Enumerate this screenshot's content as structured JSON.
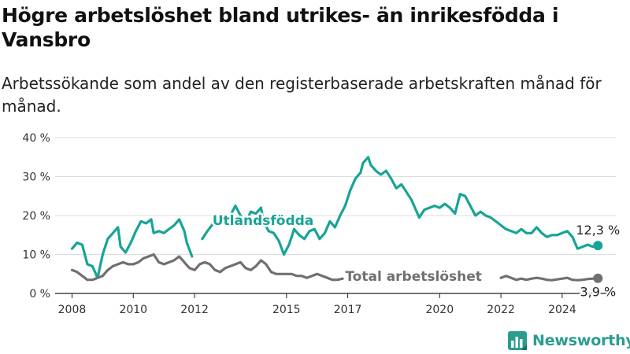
{
  "title": "Högre arbetslöshet bland utrikes- än inrikesfödda i Vansbro",
  "subtitle": "Arbetssökande som andel av den registerbaserade arbetskraften månad för månad.",
  "brand": "Newsworthy",
  "colors": {
    "foreign": "#17a495",
    "total": "#707070",
    "grid": "#dddddd",
    "brand": "#2a9d8f"
  },
  "chart_data": {
    "type": "line",
    "xlabel": "",
    "ylabel": "",
    "ylim": [
      0,
      40
    ],
    "yticks": [
      0,
      10,
      20,
      30,
      40
    ],
    "ytick_labels": [
      "0 %",
      "10 %",
      "20 %",
      "30 %",
      "40 %"
    ],
    "xticks": [
      "2008-01",
      "2010-01",
      "2012-01",
      "2015-01",
      "2017-01",
      "2020-01",
      "2022-01",
      "2024-01"
    ],
    "xtick_labels": [
      "2008",
      "2010",
      "2012",
      "2015",
      "2017",
      "2020",
      "2022",
      "2024"
    ],
    "xlim": [
      "2007-07",
      "2025-10"
    ],
    "grid": "horizontal",
    "series": [
      {
        "name": "Utlandsfödda",
        "end_label": "12,3 %",
        "points": [
          [
            "2008-01",
            11.5
          ],
          [
            "2008-03",
            13.0
          ],
          [
            "2008-05",
            12.5
          ],
          [
            "2008-07",
            7.5
          ],
          [
            "2008-09",
            7.0
          ],
          [
            "2008-11",
            4.0
          ],
          [
            "2009-01",
            10.0
          ],
          [
            "2009-03",
            14.0
          ],
          [
            "2009-05",
            15.5
          ],
          [
            "2009-07",
            17.0
          ],
          [
            "2009-08",
            12.0
          ],
          [
            "2009-10",
            10.5
          ],
          [
            "2009-12",
            13.0
          ],
          [
            "2010-02",
            16.0
          ],
          [
            "2010-04",
            18.5
          ],
          [
            "2010-06",
            18.0
          ],
          [
            "2010-08",
            19.0
          ],
          [
            "2010-09",
            15.5
          ],
          [
            "2010-11",
            16.0
          ],
          [
            "2011-01",
            15.5
          ],
          [
            "2011-03",
            16.5
          ],
          [
            "2011-05",
            17.5
          ],
          [
            "2011-07",
            19.0
          ],
          [
            "2011-09",
            16.0
          ],
          [
            "2011-10",
            13.0
          ],
          [
            "2011-12",
            9.5
          ],
          [
            "2012-04",
            14.0
          ],
          [
            "2012-06",
            16.0
          ],
          [
            "2012-09",
            18.5
          ],
          [
            "2012-12",
            19.0
          ],
          [
            "2013-03",
            20.0
          ],
          [
            "2013-05",
            22.5
          ],
          [
            "2013-07",
            20.0
          ],
          [
            "2013-09",
            18.0
          ],
          [
            "2013-11",
            21.0
          ],
          [
            "2014-01",
            20.5
          ],
          [
            "2014-03",
            22.0
          ],
          [
            "2014-04",
            18.5
          ],
          [
            "2014-06",
            16.0
          ],
          [
            "2014-08",
            15.5
          ],
          [
            "2014-10",
            13.5
          ],
          [
            "2014-12",
            10.0
          ],
          [
            "2015-02",
            12.5
          ],
          [
            "2015-04",
            16.5
          ],
          [
            "2015-06",
            15.0
          ],
          [
            "2015-08",
            14.0
          ],
          [
            "2015-10",
            16.0
          ],
          [
            "2015-12",
            16.5
          ],
          [
            "2016-02",
            14.0
          ],
          [
            "2016-04",
            15.5
          ],
          [
            "2016-06",
            18.5
          ],
          [
            "2016-08",
            17.0
          ],
          [
            "2016-10",
            20.0
          ],
          [
            "2016-12",
            22.5
          ],
          [
            "2017-02",
            26.5
          ],
          [
            "2017-04",
            29.5
          ],
          [
            "2017-06",
            31.0
          ],
          [
            "2017-07",
            33.5
          ],
          [
            "2017-09",
            35.0
          ],
          [
            "2017-10",
            33.0
          ],
          [
            "2017-12",
            31.5
          ],
          [
            "2018-02",
            30.5
          ],
          [
            "2018-04",
            31.5
          ],
          [
            "2018-06",
            29.5
          ],
          [
            "2018-08",
            27.0
          ],
          [
            "2018-10",
            28.0
          ],
          [
            "2018-12",
            26.0
          ],
          [
            "2019-02",
            24.0
          ],
          [
            "2019-04",
            21.0
          ],
          [
            "2019-05",
            19.5
          ],
          [
            "2019-07",
            21.5
          ],
          [
            "2019-09",
            22.0
          ],
          [
            "2019-11",
            22.5
          ],
          [
            "2020-01",
            22.0
          ],
          [
            "2020-03",
            23.0
          ],
          [
            "2020-05",
            22.0
          ],
          [
            "2020-07",
            20.5
          ],
          [
            "2020-09",
            25.5
          ],
          [
            "2020-11",
            25.0
          ],
          [
            "2021-01",
            22.5
          ],
          [
            "2021-03",
            20.0
          ],
          [
            "2021-05",
            21.0
          ],
          [
            "2021-07",
            20.0
          ],
          [
            "2021-09",
            19.5
          ],
          [
            "2021-11",
            18.5
          ],
          [
            "2022-01",
            17.5
          ],
          [
            "2022-03",
            16.5
          ],
          [
            "2022-05",
            16.0
          ],
          [
            "2022-07",
            15.5
          ],
          [
            "2022-09",
            16.5
          ],
          [
            "2022-11",
            15.5
          ],
          [
            "2023-01",
            15.5
          ],
          [
            "2023-03",
            17.0
          ],
          [
            "2023-05",
            15.5
          ],
          [
            "2023-07",
            14.5
          ],
          [
            "2023-09",
            15.0
          ],
          [
            "2023-11",
            15.0
          ],
          [
            "2024-01",
            15.5
          ],
          [
            "2024-03",
            16.0
          ],
          [
            "2024-05",
            14.5
          ],
          [
            "2024-07",
            11.5
          ],
          [
            "2024-09",
            12.0
          ],
          [
            "2024-11",
            12.5
          ],
          [
            "2025-01",
            12.0
          ],
          [
            "2025-03",
            12.3
          ]
        ]
      },
      {
        "name": "Total arbetslöshet",
        "end_label": "3,9 %",
        "points": [
          [
            "2008-01",
            6.0
          ],
          [
            "2008-03",
            5.5
          ],
          [
            "2008-05",
            4.5
          ],
          [
            "2008-07",
            3.5
          ],
          [
            "2008-09",
            3.5
          ],
          [
            "2008-11",
            4.0
          ],
          [
            "2009-01",
            4.5
          ],
          [
            "2009-03",
            6.0
          ],
          [
            "2009-05",
            7.0
          ],
          [
            "2009-07",
            7.5
          ],
          [
            "2009-09",
            8.0
          ],
          [
            "2009-11",
            7.5
          ],
          [
            "2010-01",
            7.5
          ],
          [
            "2010-03",
            8.0
          ],
          [
            "2010-05",
            9.0
          ],
          [
            "2010-07",
            9.5
          ],
          [
            "2010-09",
            10.0
          ],
          [
            "2010-11",
            8.0
          ],
          [
            "2011-01",
            7.5
          ],
          [
            "2011-03",
            8.0
          ],
          [
            "2011-05",
            8.5
          ],
          [
            "2011-07",
            9.5
          ],
          [
            "2011-09",
            8.0
          ],
          [
            "2011-11",
            6.5
          ],
          [
            "2012-01",
            6.0
          ],
          [
            "2012-03",
            7.5
          ],
          [
            "2012-05",
            8.0
          ],
          [
            "2012-07",
            7.5
          ],
          [
            "2012-09",
            6.0
          ],
          [
            "2012-11",
            5.5
          ],
          [
            "2013-01",
            6.5
          ],
          [
            "2013-03",
            7.0
          ],
          [
            "2013-05",
            7.5
          ],
          [
            "2013-07",
            8.0
          ],
          [
            "2013-09",
            6.5
          ],
          [
            "2013-11",
            6.0
          ],
          [
            "2014-01",
            7.0
          ],
          [
            "2014-03",
            8.5
          ],
          [
            "2014-05",
            7.5
          ],
          [
            "2014-07",
            5.5
          ],
          [
            "2014-09",
            5.0
          ],
          [
            "2014-11",
            5.0
          ],
          [
            "2015-01",
            5.0
          ],
          [
            "2015-03",
            5.0
          ],
          [
            "2015-05",
            4.5
          ],
          [
            "2015-07",
            4.5
          ],
          [
            "2015-09",
            4.0
          ],
          [
            "2015-11",
            4.5
          ],
          [
            "2016-01",
            5.0
          ],
          [
            "2016-03",
            4.5
          ],
          [
            "2016-05",
            4.0
          ],
          [
            "2016-07",
            3.5
          ],
          [
            "2016-09",
            3.5
          ],
          [
            "2016-11",
            3.8
          ],
          [
            "2022-01",
            4.0
          ],
          [
            "2022-03",
            4.5
          ],
          [
            "2022-05",
            4.0
          ],
          [
            "2022-07",
            3.5
          ],
          [
            "2022-09",
            3.8
          ],
          [
            "2022-11",
            3.5
          ],
          [
            "2023-01",
            3.8
          ],
          [
            "2023-03",
            4.0
          ],
          [
            "2023-05",
            3.8
          ],
          [
            "2023-07",
            3.5
          ],
          [
            "2023-09",
            3.4
          ],
          [
            "2023-11",
            3.6
          ],
          [
            "2024-01",
            3.8
          ],
          [
            "2024-03",
            4.0
          ],
          [
            "2024-05",
            3.5
          ],
          [
            "2024-07",
            3.4
          ],
          [
            "2024-09",
            3.5
          ],
          [
            "2024-11",
            3.7
          ],
          [
            "2025-01",
            3.8
          ],
          [
            "2025-03",
            3.9
          ]
        ]
      }
    ]
  }
}
